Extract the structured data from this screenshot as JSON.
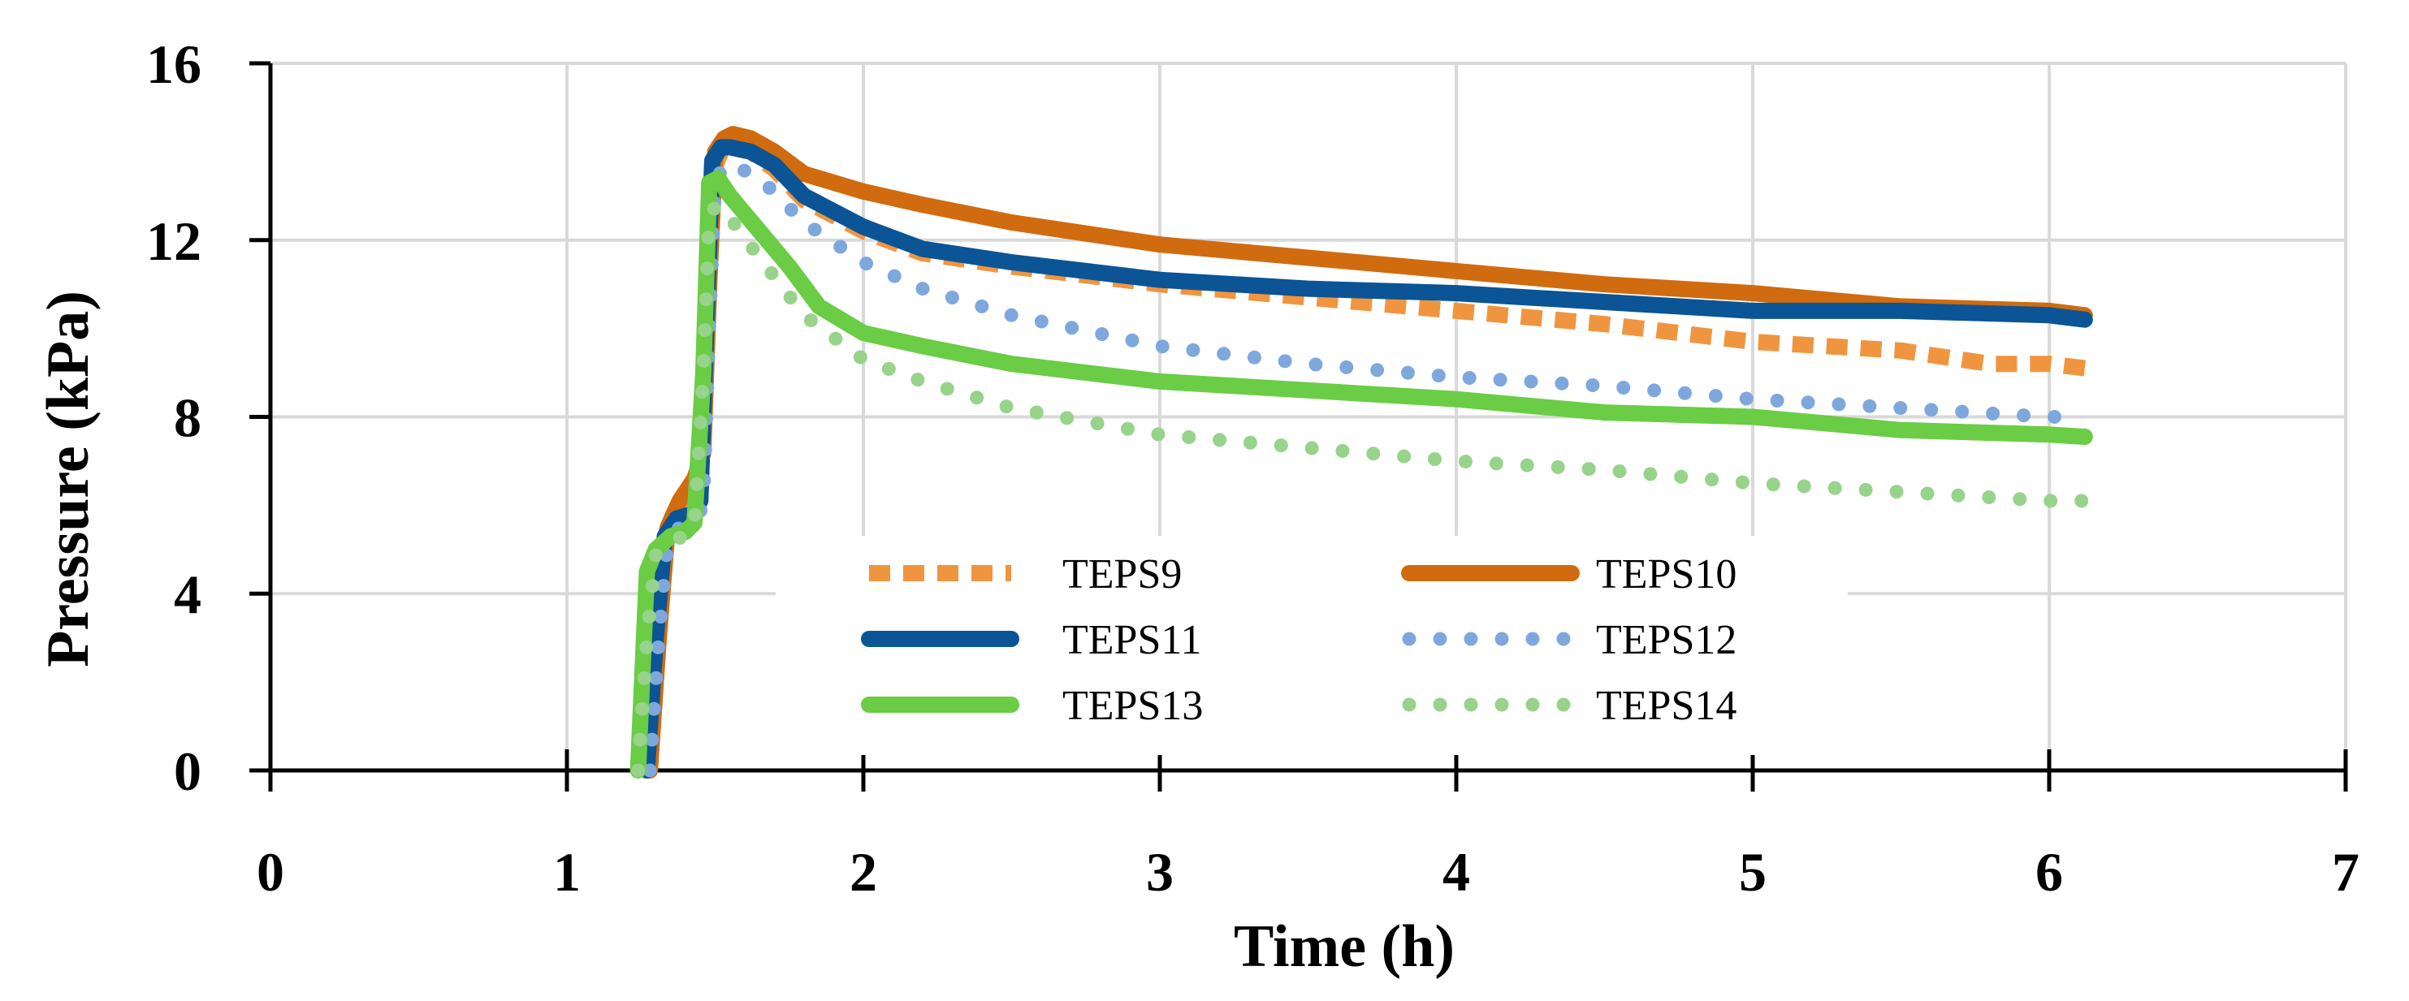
{
  "chart_data": {
    "type": "line",
    "title": "",
    "xlabel": "Time (h)",
    "ylabel": "Pressure (kPa)",
    "xlim": [
      0,
      7
    ],
    "ylim": [
      0,
      16
    ],
    "xticks": [
      0,
      1,
      2,
      3,
      4,
      5,
      6,
      7
    ],
    "yticks": [
      0,
      4,
      8,
      12,
      16
    ],
    "grid": true,
    "legend_position": "bottom-center",
    "series": [
      {
        "name": "TEPS9",
        "color": "#f0953f",
        "style": "dashed",
        "points": [
          [
            1.27,
            0
          ],
          [
            1.3,
            2.5
          ],
          [
            1.33,
            5.3
          ],
          [
            1.37,
            6.0
          ],
          [
            1.42,
            6.4
          ],
          [
            1.45,
            6.8
          ],
          [
            1.47,
            10
          ],
          [
            1.49,
            13.5
          ],
          [
            1.52,
            14.0
          ],
          [
            1.55,
            14.1
          ],
          [
            1.62,
            14.0
          ],
          [
            1.7,
            13.6
          ],
          [
            1.8,
            12.9
          ],
          [
            2.0,
            12.2
          ],
          [
            2.2,
            11.7
          ],
          [
            2.5,
            11.4
          ],
          [
            3.0,
            11.0
          ],
          [
            3.5,
            10.7
          ],
          [
            4.0,
            10.4
          ],
          [
            4.5,
            10.1
          ],
          [
            5.0,
            9.7
          ],
          [
            5.5,
            9.5
          ],
          [
            5.8,
            9.2
          ],
          [
            6.0,
            9.2
          ],
          [
            6.12,
            9.1
          ]
        ]
      },
      {
        "name": "TEPS10",
        "color": "#d06b0f",
        "style": "solid",
        "points": [
          [
            1.28,
            0
          ],
          [
            1.31,
            3.0
          ],
          [
            1.34,
            5.5
          ],
          [
            1.38,
            6.1
          ],
          [
            1.43,
            6.6
          ],
          [
            1.46,
            7.2
          ],
          [
            1.48,
            11
          ],
          [
            1.5,
            14.0
          ],
          [
            1.53,
            14.3
          ],
          [
            1.56,
            14.4
          ],
          [
            1.62,
            14.3
          ],
          [
            1.7,
            14.0
          ],
          [
            1.8,
            13.5
          ],
          [
            2.0,
            13.1
          ],
          [
            2.2,
            12.8
          ],
          [
            2.5,
            12.4
          ],
          [
            3.0,
            11.9
          ],
          [
            3.5,
            11.6
          ],
          [
            4.0,
            11.3
          ],
          [
            4.5,
            11.0
          ],
          [
            5.0,
            10.8
          ],
          [
            5.5,
            10.5
          ],
          [
            6.0,
            10.4
          ],
          [
            6.12,
            10.3
          ]
        ]
      },
      {
        "name": "TEPS11",
        "color": "#0b5495",
        "style": "solid",
        "points": [
          [
            1.27,
            0
          ],
          [
            1.3,
            3.0
          ],
          [
            1.33,
            5.3
          ],
          [
            1.37,
            5.7
          ],
          [
            1.42,
            5.8
          ],
          [
            1.45,
            6.1
          ],
          [
            1.47,
            10
          ],
          [
            1.49,
            13.8
          ],
          [
            1.52,
            14.1
          ],
          [
            1.55,
            14.1
          ],
          [
            1.62,
            14.0
          ],
          [
            1.7,
            13.7
          ],
          [
            1.8,
            13.0
          ],
          [
            2.0,
            12.3
          ],
          [
            2.2,
            11.8
          ],
          [
            2.5,
            11.5
          ],
          [
            3.0,
            11.1
          ],
          [
            3.5,
            10.9
          ],
          [
            4.0,
            10.8
          ],
          [
            4.5,
            10.6
          ],
          [
            5.0,
            10.4
          ],
          [
            5.5,
            10.4
          ],
          [
            6.0,
            10.3
          ],
          [
            6.12,
            10.2
          ]
        ]
      },
      {
        "name": "TEPS12",
        "color": "#7ea8dd",
        "style": "dotted",
        "points": [
          [
            1.28,
            0
          ],
          [
            1.31,
            3.0
          ],
          [
            1.34,
            5.2
          ],
          [
            1.38,
            5.5
          ],
          [
            1.43,
            5.6
          ],
          [
            1.46,
            6.0
          ],
          [
            1.48,
            10
          ],
          [
            1.5,
            13.3
          ],
          [
            1.53,
            13.7
          ],
          [
            1.56,
            13.7
          ],
          [
            1.65,
            13.4
          ],
          [
            1.8,
            12.4
          ],
          [
            2.0,
            11.5
          ],
          [
            2.2,
            10.9
          ],
          [
            2.5,
            10.3
          ],
          [
            3.0,
            9.6
          ],
          [
            3.5,
            9.2
          ],
          [
            4.0,
            8.9
          ],
          [
            4.5,
            8.7
          ],
          [
            5.0,
            8.4
          ],
          [
            5.5,
            8.2
          ],
          [
            6.0,
            8.0
          ],
          [
            6.12,
            8.0
          ]
        ]
      },
      {
        "name": "TEPS13",
        "color": "#6bcc45",
        "style": "solid",
        "points": [
          [
            1.24,
            0
          ],
          [
            1.27,
            4.5
          ],
          [
            1.3,
            5.0
          ],
          [
            1.35,
            5.3
          ],
          [
            1.4,
            5.4
          ],
          [
            1.43,
            5.6
          ],
          [
            1.46,
            9
          ],
          [
            1.48,
            13.3
          ],
          [
            1.51,
            13.4
          ],
          [
            1.55,
            13.0
          ],
          [
            1.65,
            12.2
          ],
          [
            1.75,
            11.4
          ],
          [
            1.85,
            10.5
          ],
          [
            2.0,
            9.9
          ],
          [
            2.2,
            9.6
          ],
          [
            2.5,
            9.2
          ],
          [
            3.0,
            8.8
          ],
          [
            3.5,
            8.6
          ],
          [
            4.0,
            8.4
          ],
          [
            4.5,
            8.1
          ],
          [
            5.0,
            8.0
          ],
          [
            5.5,
            7.7
          ],
          [
            6.0,
            7.6
          ],
          [
            6.12,
            7.55
          ]
        ]
      },
      {
        "name": "TEPS14",
        "color": "#97d38a",
        "style": "dotted",
        "points": [
          [
            1.24,
            0
          ],
          [
            1.27,
            3.0
          ],
          [
            1.3,
            4.9
          ],
          [
            1.35,
            5.2
          ],
          [
            1.4,
            5.3
          ],
          [
            1.43,
            5.5
          ],
          [
            1.46,
            9
          ],
          [
            1.48,
            12.6
          ],
          [
            1.51,
            12.8
          ],
          [
            1.55,
            12.5
          ],
          [
            1.65,
            11.6
          ],
          [
            1.8,
            10.3
          ],
          [
            2.0,
            9.3
          ],
          [
            2.2,
            8.8
          ],
          [
            2.5,
            8.2
          ],
          [
            3.0,
            7.6
          ],
          [
            3.5,
            7.3
          ],
          [
            4.0,
            7.0
          ],
          [
            4.5,
            6.8
          ],
          [
            5.0,
            6.5
          ],
          [
            5.5,
            6.3
          ],
          [
            6.0,
            6.1
          ],
          [
            6.12,
            6.1
          ]
        ]
      }
    ]
  }
}
